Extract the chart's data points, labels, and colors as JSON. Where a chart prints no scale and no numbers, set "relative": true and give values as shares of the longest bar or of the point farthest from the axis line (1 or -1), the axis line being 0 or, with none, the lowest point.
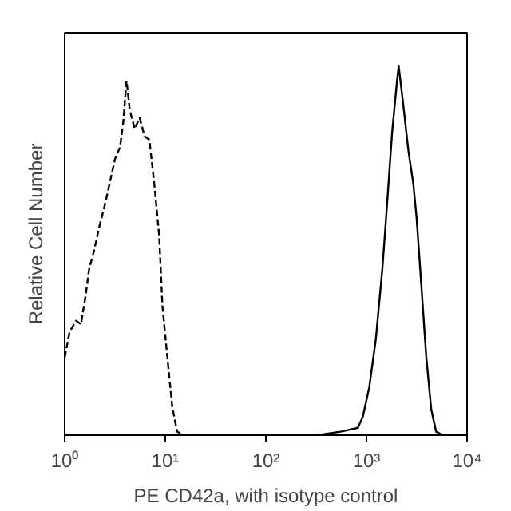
{
  "chart_data": {
    "type": "line",
    "relative": true,
    "log": "x",
    "xlabel": "PE CD42a, with isotype control",
    "ylabel": "Relative Cell Number",
    "xlim": [
      1,
      10000
    ],
    "xticks": [
      {
        "value": 1,
        "label": "10⁰"
      },
      {
        "value": 10,
        "label": "10¹"
      },
      {
        "value": 100,
        "label": "10²"
      },
      {
        "value": 1000,
        "label": "10³"
      },
      {
        "value": 10000,
        "label": "10⁴"
      }
    ],
    "tick_labels": "x",
    "grid": false,
    "marker": "none",
    "series": [
      {
        "color": "#000000",
        "line_style": "dashed",
        "x": [
          1.0,
          1.12,
          1.3,
          1.45,
          1.62,
          1.75,
          1.96,
          2.19,
          2.54,
          2.84,
          3.18,
          3.55,
          3.83,
          4.12,
          4.44,
          4.97,
          5.56,
          6.22,
          6.95,
          7.78,
          8.7,
          9.37,
          10.5,
          11.7,
          13.1,
          15.2,
          19.8
        ],
        "values": [
          0.21,
          0.28,
          0.31,
          0.3,
          0.38,
          0.45,
          0.5,
          0.56,
          0.63,
          0.69,
          0.75,
          0.78,
          0.85,
          0.96,
          0.88,
          0.83,
          0.86,
          0.81,
          0.8,
          0.68,
          0.54,
          0.35,
          0.21,
          0.08,
          0.01,
          0,
          0
        ]
      },
      {
        "color": "#000000",
        "line_style": "solid",
        "x": [
          324,
          566,
          822,
          920,
          1067,
          1239,
          1439,
          1607,
          1799,
          2014,
          2089,
          2333,
          2612,
          2924,
          3148,
          3524,
          3936,
          4406,
          4921,
          5715,
          9290
        ],
        "values": [
          0,
          0.01,
          0.02,
          0.05,
          0.13,
          0.26,
          0.45,
          0.63,
          0.82,
          0.96,
          1.0,
          0.89,
          0.77,
          0.68,
          0.59,
          0.4,
          0.21,
          0.07,
          0.01,
          0,
          0
        ]
      }
    ]
  }
}
